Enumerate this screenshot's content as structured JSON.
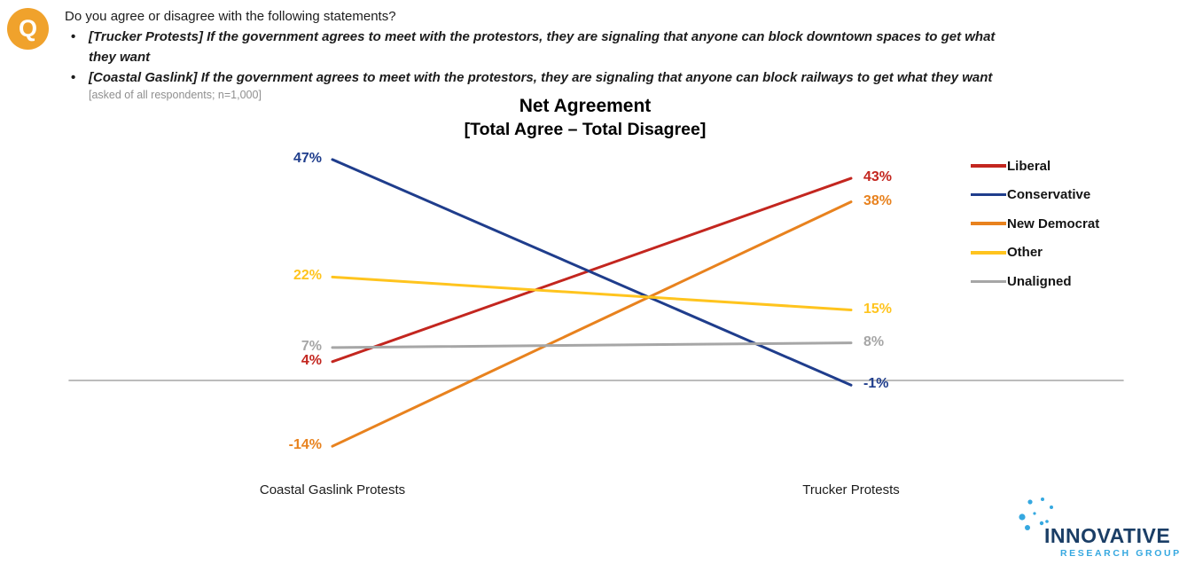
{
  "header": {
    "badge": "Q",
    "badge_color": "#F0A22C"
  },
  "question": {
    "intro": "Do you agree or disagree with the following statements?",
    "bullet_marker": "•",
    "bullets": [
      "[Trucker Protests] If the government agrees to meet with the protestors, they are signaling that anyone can block downtown spaces to get what they want",
      "[Coastal Gaslink] If the government agrees to meet with the protestors, they are signaling that anyone can block railways to get what they want"
    ],
    "note": "[asked of all respondents; n=1,000]"
  },
  "chart_data": {
    "type": "line",
    "variant": "slope",
    "title": "Net Agreement",
    "subtitle": "[Total Agree – Total Disagree]",
    "categories": [
      "Coastal Gaslink Protests",
      "Trucker Protests"
    ],
    "series": [
      {
        "name": "Liberal",
        "color": "#C3261F",
        "values": [
          4,
          43
        ]
      },
      {
        "name": "Conservative",
        "color": "#1F3D8C",
        "values": [
          47,
          -1
        ]
      },
      {
        "name": "New Democrat",
        "color": "#E8821E",
        "values": [
          -14,
          38
        ]
      },
      {
        "name": "Other",
        "color": "#FFC41E",
        "values": [
          22,
          15
        ]
      },
      {
        "name": "Unaligned",
        "color": "#A6A6A6",
        "values": [
          7,
          8
        ]
      }
    ],
    "value_suffix": "%",
    "baseline": 0,
    "axis_color": "#A6A6A6",
    "grid": false,
    "legend_position": "right"
  },
  "logo": {
    "name": "INNOVATIVE",
    "subtitle": "RESEARCH GROUP",
    "navy": "#1B3E66",
    "blue": "#35A8E0"
  }
}
